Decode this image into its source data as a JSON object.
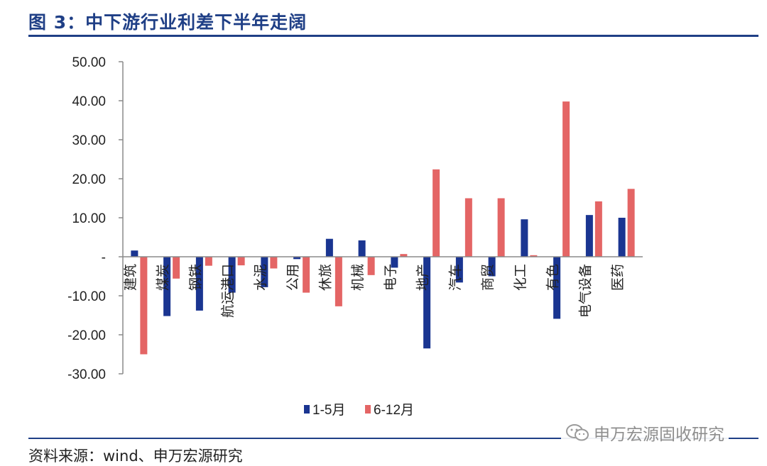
{
  "figure": {
    "title": "图 3：中下游行业利差下半年走阔",
    "source": "资料来源：wind、申万宏源研究",
    "watermark": "申万宏源固收研究"
  },
  "colors": {
    "accent": "#1f3f86",
    "series1": "#1a3591",
    "series2": "#e46565"
  },
  "chart_data": {
    "type": "bar",
    "categories": [
      "建筑",
      "煤炭",
      "钢铁",
      "航运港口",
      "水泥",
      "公用",
      "休旅",
      "机械",
      "电子",
      "地产",
      "汽车",
      "商贸",
      "化工",
      "有色",
      "电气设备",
      "医药"
    ],
    "series": [
      {
        "name": "1-5月",
        "values": [
          1.6,
          -15.2,
          -13.8,
          -9.2,
          -7.8,
          -0.6,
          4.6,
          4.2,
          -2.8,
          -23.5,
          -6.6,
          -5.0,
          9.6,
          -15.9,
          10.7,
          10.0
        ]
      },
      {
        "name": "6-12月",
        "values": [
          -25.0,
          -5.6,
          -2.3,
          -2.2,
          -3.0,
          -9.2,
          -12.7,
          -4.7,
          0.7,
          22.4,
          15.0,
          15.0,
          0.4,
          39.8,
          14.2,
          17.4
        ]
      }
    ],
    "y_ticks": [
      "50.00",
      "40.00",
      "30.00",
      "20.00",
      "10.00",
      "-",
      "-10.00",
      "-20.00",
      "-30.00"
    ],
    "y_tick_values": [
      50,
      40,
      30,
      20,
      10,
      0,
      -10,
      -20,
      -30
    ],
    "ylim": [
      -30,
      50
    ],
    "grid": false,
    "legend_position": "bottom"
  }
}
